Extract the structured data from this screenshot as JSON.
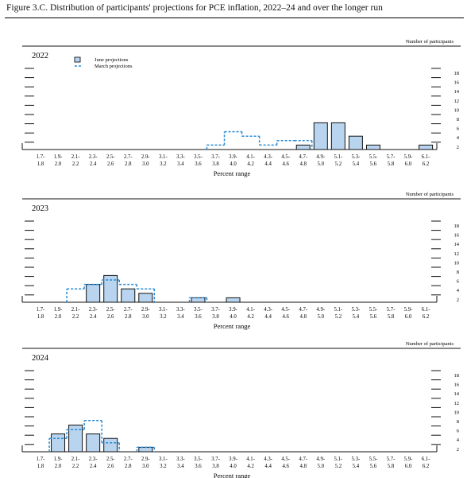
{
  "figure": {
    "title": "Figure 3.C. Distribution of participants' projections for PCE inflation, 2022–24 and over the longer run"
  },
  "chart_data": [
    {
      "type": "bar",
      "panel_year": "2022",
      "categories_top": [
        "1.7-",
        "1.9-",
        "2.1-",
        "2.3-",
        "2.5-",
        "2.7-",
        "2.9-",
        "3.1-",
        "3.3-",
        "3.5-",
        "3.7-",
        "3.9-",
        "4.1-",
        "4.3-",
        "4.5-",
        "4.7-",
        "4.9-",
        "5.1-",
        "5.3-",
        "5.5-",
        "5.7-",
        "5.9-",
        "6.1-"
      ],
      "categories_bottom": [
        "1.8",
        "2.0",
        "2.2",
        "2.4",
        "2.6",
        "2.8",
        "3.0",
        "3.2",
        "3.4",
        "3.6",
        "3.8",
        "4.0",
        "4.2",
        "4.4",
        "4.6",
        "4.8",
        "5.0",
        "5.2",
        "5.4",
        "5.6",
        "5.8",
        "6.0",
        "6.2"
      ],
      "xlabel": "Percent range",
      "ylabel": "Number of participants",
      "yticks": [
        2,
        4,
        6,
        8,
        10,
        12,
        14,
        16,
        18
      ],
      "ylim": [
        0,
        18
      ],
      "legend": [
        "June projections",
        "March projections"
      ],
      "series": [
        {
          "name": "June projections",
          "style": "bar",
          "values": [
            0,
            0,
            0,
            0,
            0,
            0,
            0,
            0,
            0,
            0,
            0,
            0,
            0,
            0,
            0,
            1,
            6,
            6,
            3,
            1,
            0,
            0,
            1
          ]
        },
        {
          "name": "March projections",
          "style": "dashed",
          "values": [
            0,
            0,
            0,
            0,
            0,
            0,
            0,
            0,
            0,
            0,
            1,
            4,
            3,
            1,
            2,
            2,
            0,
            0,
            0,
            0,
            0,
            0,
            0
          ]
        }
      ]
    },
    {
      "type": "bar",
      "panel_year": "2023",
      "categories_top": [
        "1.7-",
        "1.9-",
        "2.1-",
        "2.3-",
        "2.5-",
        "2.7-",
        "2.9-",
        "3.1-",
        "3.3-",
        "3.5-",
        "3.7-",
        "3.9-",
        "4.1-",
        "4.3-",
        "4.5-",
        "4.7-",
        "4.9-",
        "5.1-",
        "5.3-",
        "5.5-",
        "5.7-",
        "5.9-",
        "6.1-"
      ],
      "categories_bottom": [
        "1.8",
        "2.0",
        "2.2",
        "2.4",
        "2.6",
        "2.8",
        "3.0",
        "3.2",
        "3.4",
        "3.6",
        "3.8",
        "4.0",
        "4.2",
        "4.4",
        "4.6",
        "4.8",
        "5.0",
        "5.2",
        "5.4",
        "5.6",
        "5.8",
        "6.0",
        "6.2"
      ],
      "xlabel": "Percent range",
      "ylabel": "Number of participants",
      "yticks": [
        2,
        4,
        6,
        8,
        10,
        12,
        14,
        16,
        18
      ],
      "ylim": [
        0,
        18
      ],
      "series": [
        {
          "name": "June projections",
          "style": "bar",
          "values": [
            0,
            0,
            0,
            4,
            6,
            3,
            2,
            0,
            0,
            1,
            0,
            1,
            0,
            0,
            0,
            0,
            0,
            0,
            0,
            0,
            0,
            0,
            0
          ]
        },
        {
          "name": "March projections",
          "style": "dashed",
          "values": [
            0,
            0,
            3,
            4,
            5,
            4,
            3,
            0,
            0,
            1,
            0,
            0,
            0,
            0,
            0,
            0,
            0,
            0,
            0,
            0,
            0,
            0,
            0
          ]
        }
      ]
    },
    {
      "type": "bar",
      "panel_year": "2024",
      "categories_top": [
        "1.7-",
        "1.9-",
        "2.1-",
        "2.3-",
        "2.5-",
        "2.7-",
        "2.9-",
        "3.1-",
        "3.3-",
        "3.5-",
        "3.7-",
        "3.9-",
        "4.1-",
        "4.3-",
        "4.5-",
        "4.7-",
        "4.9-",
        "5.1-",
        "5.3-",
        "5.5-",
        "5.7-",
        "5.9-",
        "6.1-"
      ],
      "categories_bottom": [
        "1.8",
        "2.0",
        "2.2",
        "2.4",
        "2.6",
        "2.8",
        "3.0",
        "3.2",
        "3.4",
        "3.6",
        "3.8",
        "4.0",
        "4.2",
        "4.4",
        "4.6",
        "4.8",
        "5.0",
        "5.2",
        "5.4",
        "5.6",
        "5.8",
        "6.0",
        "6.2"
      ],
      "xlabel": "Percent range",
      "ylabel": "Number of participants",
      "yticks": [
        2,
        4,
        6,
        8,
        10,
        12,
        14,
        16,
        18
      ],
      "ylim": [
        0,
        18
      ],
      "series": [
        {
          "name": "June projections",
          "style": "bar",
          "values": [
            0,
            4,
            6,
            4,
            3,
            0,
            1,
            0,
            0,
            0,
            0,
            0,
            0,
            0,
            0,
            0,
            0,
            0,
            0,
            0,
            0,
            0,
            0
          ]
        },
        {
          "name": "March projections",
          "style": "dashed",
          "values": [
            0,
            3,
            5,
            7,
            2,
            0,
            1,
            0,
            0,
            0,
            0,
            0,
            0,
            0,
            0,
            0,
            0,
            0,
            0,
            0,
            0,
            0,
            0
          ]
        }
      ]
    }
  ],
  "colors": {
    "bar_fill": "#b8d4ee",
    "bar_stroke": "#111111",
    "dashed_line": "#2a8ad4",
    "axis": "#111111"
  }
}
